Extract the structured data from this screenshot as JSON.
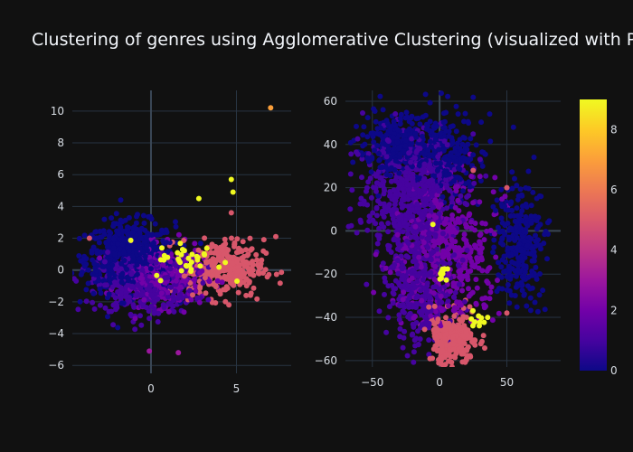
{
  "title": "Clustering of genres using Agglomerative Clustering (visualized with PCA v",
  "colors": {
    "background": "#111111",
    "grid": "#283442",
    "zeroline": "#3a4756",
    "text": "#f2f5fa",
    "tick_text": "#d8dde4",
    "colorscale": [
      "#0d0887",
      "#46039f",
      "#7201a8",
      "#9c179e",
      "#bd3786",
      "#d8576b",
      "#ed7953",
      "#fb9f3a",
      "#fdca26",
      "#f0f921"
    ]
  },
  "chart_data": [
    {
      "type": "scatter",
      "name_hint": "pca",
      "xlim": [
        -4.6,
        8.2
      ],
      "ylim": [
        -6.5,
        11.3
      ],
      "xticks": [
        0,
        5
      ],
      "xtick_labels": [
        "0",
        "5"
      ],
      "yticks": [
        -6,
        -4,
        -2,
        0,
        2,
        4,
        6,
        8,
        10
      ],
      "ytick_labels": [
        "−6",
        "−4",
        "−2",
        "0",
        "2",
        "4",
        "6",
        "8",
        "10"
      ],
      "clusters": [
        {
          "label": 0,
          "center": [
            -1.2,
            0.8
          ],
          "spread": [
            1.3,
            1.1
          ],
          "count": 650
        },
        {
          "label": 1,
          "center": [
            -0.3,
            -0.9
          ],
          "spread": [
            1.4,
            0.9
          ],
          "count": 450
        },
        {
          "label": 2,
          "center": [
            0.6,
            -0.4
          ],
          "spread": [
            1.2,
            0.9
          ],
          "count": 350
        },
        {
          "label": 5,
          "center": [
            4.2,
            0.1
          ],
          "spread": [
            1.2,
            0.9
          ],
          "count": 320
        },
        {
          "label": 9,
          "center": [
            2.2,
            0.6
          ],
          "spread": [
            1.0,
            0.6
          ],
          "count": 35
        }
      ],
      "extra_points": [
        {
          "x": 7.0,
          "y": 10.2,
          "c": 7
        },
        {
          "x": 4.7,
          "y": 5.7,
          "c": 9
        },
        {
          "x": 4.8,
          "y": 4.9,
          "c": 9
        },
        {
          "x": 2.8,
          "y": 4.5,
          "c": 9
        },
        {
          "x": 4.7,
          "y": 3.6,
          "c": 5
        },
        {
          "x": 7.3,
          "y": 2.1,
          "c": 5
        },
        {
          "x": -0.1,
          "y": -5.1,
          "c": 3
        },
        {
          "x": 1.6,
          "y": -5.2,
          "c": 3
        },
        {
          "x": -3.6,
          "y": 2.0,
          "c": 5
        }
      ]
    },
    {
      "type": "scatter",
      "name_hint": "tsne",
      "xlim": [
        -70,
        90
      ],
      "ylim": [
        -63,
        65
      ],
      "xticks": [
        -50,
        0,
        50
      ],
      "xtick_labels": [
        "−50",
        "0",
        "50"
      ],
      "yticks": [
        -60,
        -40,
        -20,
        0,
        20,
        40,
        60
      ],
      "ytick_labels": [
        "−60",
        "−40",
        "−20",
        "0",
        "20",
        "40",
        "60"
      ],
      "clusters": [
        {
          "label": 0,
          "center": [
            -30,
            40
          ],
          "spread": [
            14,
            7
          ],
          "count": 300
        },
        {
          "label": 0,
          "center": [
            60,
            -5
          ],
          "spread": [
            9,
            14
          ],
          "count": 260
        },
        {
          "label": 0,
          "center": [
            10,
            35
          ],
          "spread": [
            12,
            10
          ],
          "count": 200
        },
        {
          "label": 1,
          "center": [
            -20,
            15
          ],
          "spread": [
            18,
            14
          ],
          "count": 550
        },
        {
          "label": 1,
          "center": [
            -15,
            -25
          ],
          "spread": [
            12,
            14
          ],
          "count": 350
        },
        {
          "label": 2,
          "center": [
            5,
            -10
          ],
          "spread": [
            18,
            16
          ],
          "count": 420
        },
        {
          "label": 5,
          "center": [
            10,
            -50
          ],
          "spread": [
            9,
            6
          ],
          "count": 280
        },
        {
          "label": 9,
          "center": [
            3,
            -20
          ],
          "spread": [
            2,
            2
          ],
          "count": 12
        },
        {
          "label": 9,
          "center": [
            30,
            -40
          ],
          "spread": [
            4,
            3
          ],
          "count": 10
        }
      ],
      "extra_points": [
        {
          "x": -5,
          "y": 3,
          "c": 9
        },
        {
          "x": 50,
          "y": 20,
          "c": 5
        },
        {
          "x": 50,
          "y": -38,
          "c": 5
        },
        {
          "x": 25,
          "y": 28,
          "c": 5
        }
      ]
    }
  ],
  "colorbar": {
    "cmin": 0,
    "cmax": 9,
    "ticks": [
      0,
      2,
      4,
      6,
      8
    ],
    "tick_labels": [
      "0",
      "2",
      "4",
      "6",
      "8"
    ]
  }
}
